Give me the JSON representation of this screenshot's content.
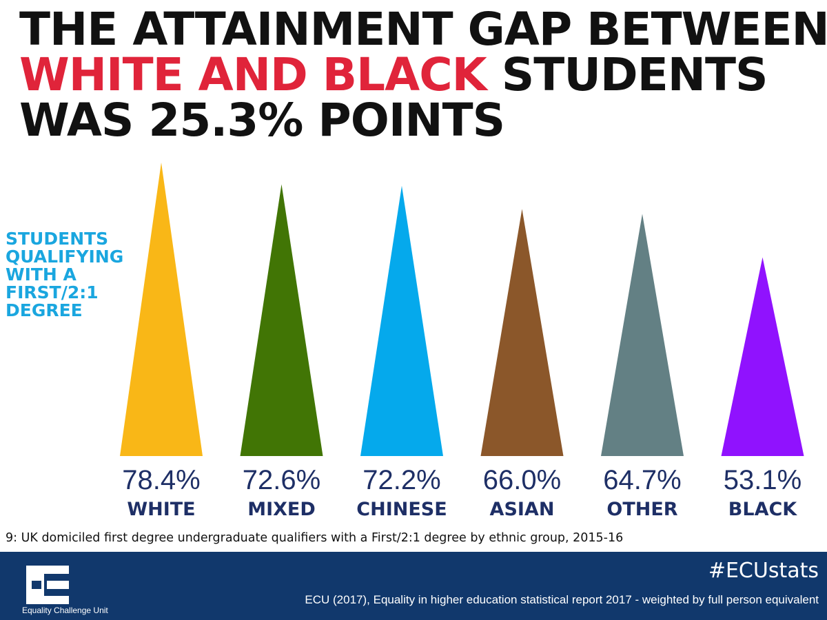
{
  "headline": {
    "line1": "THE ATTAINMENT GAP BETWEEN",
    "line2_highlight": "WHITE AND BLACK",
    "line2_rest": " STUDENTS",
    "line3": "WAS 25.3% POINTS",
    "highlight_color": "#e0243a"
  },
  "y_caption": {
    "lines": [
      "STUDENTS",
      "QUALIFYING",
      "WITH A",
      "FIRST/2:1",
      "DEGREE"
    ],
    "color": "#1aa6df"
  },
  "chart_data": {
    "type": "bar",
    "mark": "triangle",
    "categories": [
      "WHITE",
      "MIXED",
      "CHINESE",
      "ASIAN",
      "OTHER",
      "BLACK"
    ],
    "values": [
      78.4,
      72.6,
      72.2,
      66.0,
      64.7,
      53.1
    ],
    "value_labels": [
      "78.4%",
      "72.6%",
      "72.2%",
      "66.0%",
      "64.7%",
      "53.1%"
    ],
    "colors": [
      "#f9b717",
      "#417505",
      "#05a9ec",
      "#8b572a",
      "#638084",
      "#9012fe"
    ],
    "ylim": [
      0,
      100
    ],
    "grid": false,
    "legend": "none"
  },
  "footnote": "9: UK domiciled first degree undergraduate qualifiers with a First/2:1 degree by ethnic group, 2015-16",
  "footer": {
    "logo_text": "Equality Challenge Unit",
    "hashtag": "#ECUstats",
    "source": "ECU (2017), Equality in higher education statistical report 2017 - weighted by full person equivalent",
    "background": "#11386c"
  }
}
